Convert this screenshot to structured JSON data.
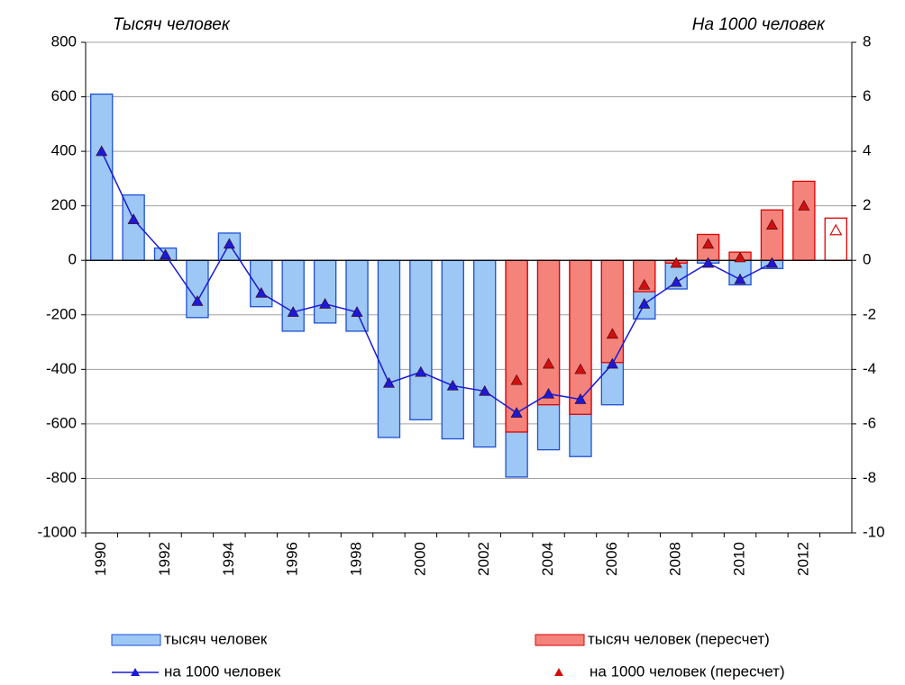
{
  "chart_data": {
    "type": "bar-line",
    "y_title": "Тысяч человек",
    "y2_title": "На 1000 человек",
    "categories": [
      "1990",
      null,
      "1992",
      null,
      "1994",
      null,
      "1996",
      null,
      "1998",
      null,
      "2000",
      null,
      "2002",
      null,
      "2004",
      null,
      "2006",
      null,
      "2008",
      null,
      "2010",
      null,
      "2012",
      null
    ],
    "ylim": [
      -1000,
      800
    ],
    "yticks": [
      -1000,
      -800,
      -600,
      -400,
      -200,
      0,
      200,
      400,
      600,
      800
    ],
    "y2lim": [
      -10,
      8
    ],
    "y2ticks": [
      -10,
      -8,
      -6,
      -4,
      -2,
      0,
      2,
      4,
      6,
      8
    ],
    "grid": true,
    "series": [
      {
        "name": "тысяч человек",
        "kind": "bar",
        "color": "#9dc8f5",
        "edge": "#1f4fd6",
        "values": [
          610,
          240,
          45,
          -210,
          100,
          -170,
          -260,
          -230,
          -260,
          -650,
          -585,
          -655,
          -685,
          -795,
          -695,
          -720,
          -530,
          -215,
          -105,
          -10,
          -90,
          -30,
          null,
          null
        ]
      },
      {
        "name": "тысяч человек (пересчет)",
        "kind": "bar",
        "color": "#f4837c",
        "edge": "#e00000",
        "hollow_indices": [
          23
        ],
        "values": [
          null,
          null,
          null,
          null,
          null,
          null,
          null,
          null,
          null,
          null,
          null,
          null,
          null,
          -630,
          -530,
          -565,
          -375,
          -115,
          -10,
          95,
          30,
          185,
          290,
          155
        ]
      },
      {
        "name": "на 1000 человек",
        "kind": "line",
        "axis": "y2",
        "color": "#1a1ad8",
        "values": [
          4.0,
          1.5,
          0.2,
          -1.5,
          0.6,
          -1.2,
          -1.9,
          -1.6,
          -1.9,
          -4.5,
          -4.1,
          -4.6,
          -4.8,
          -5.6,
          -4.9,
          -5.1,
          -3.8,
          -1.6,
          -0.8,
          -0.1,
          -0.7,
          -0.1,
          null,
          null
        ]
      },
      {
        "name": "на 1000 человек (пересчет)",
        "kind": "scatter",
        "axis": "y2",
        "color": "#d01010",
        "hollow_indices": [
          23
        ],
        "values": [
          null,
          null,
          null,
          null,
          null,
          null,
          null,
          null,
          null,
          null,
          null,
          null,
          null,
          -4.4,
          -3.8,
          -4.0,
          -2.7,
          -0.9,
          -0.1,
          0.6,
          0.1,
          1.3,
          2.0,
          1.1
        ]
      }
    ]
  }
}
